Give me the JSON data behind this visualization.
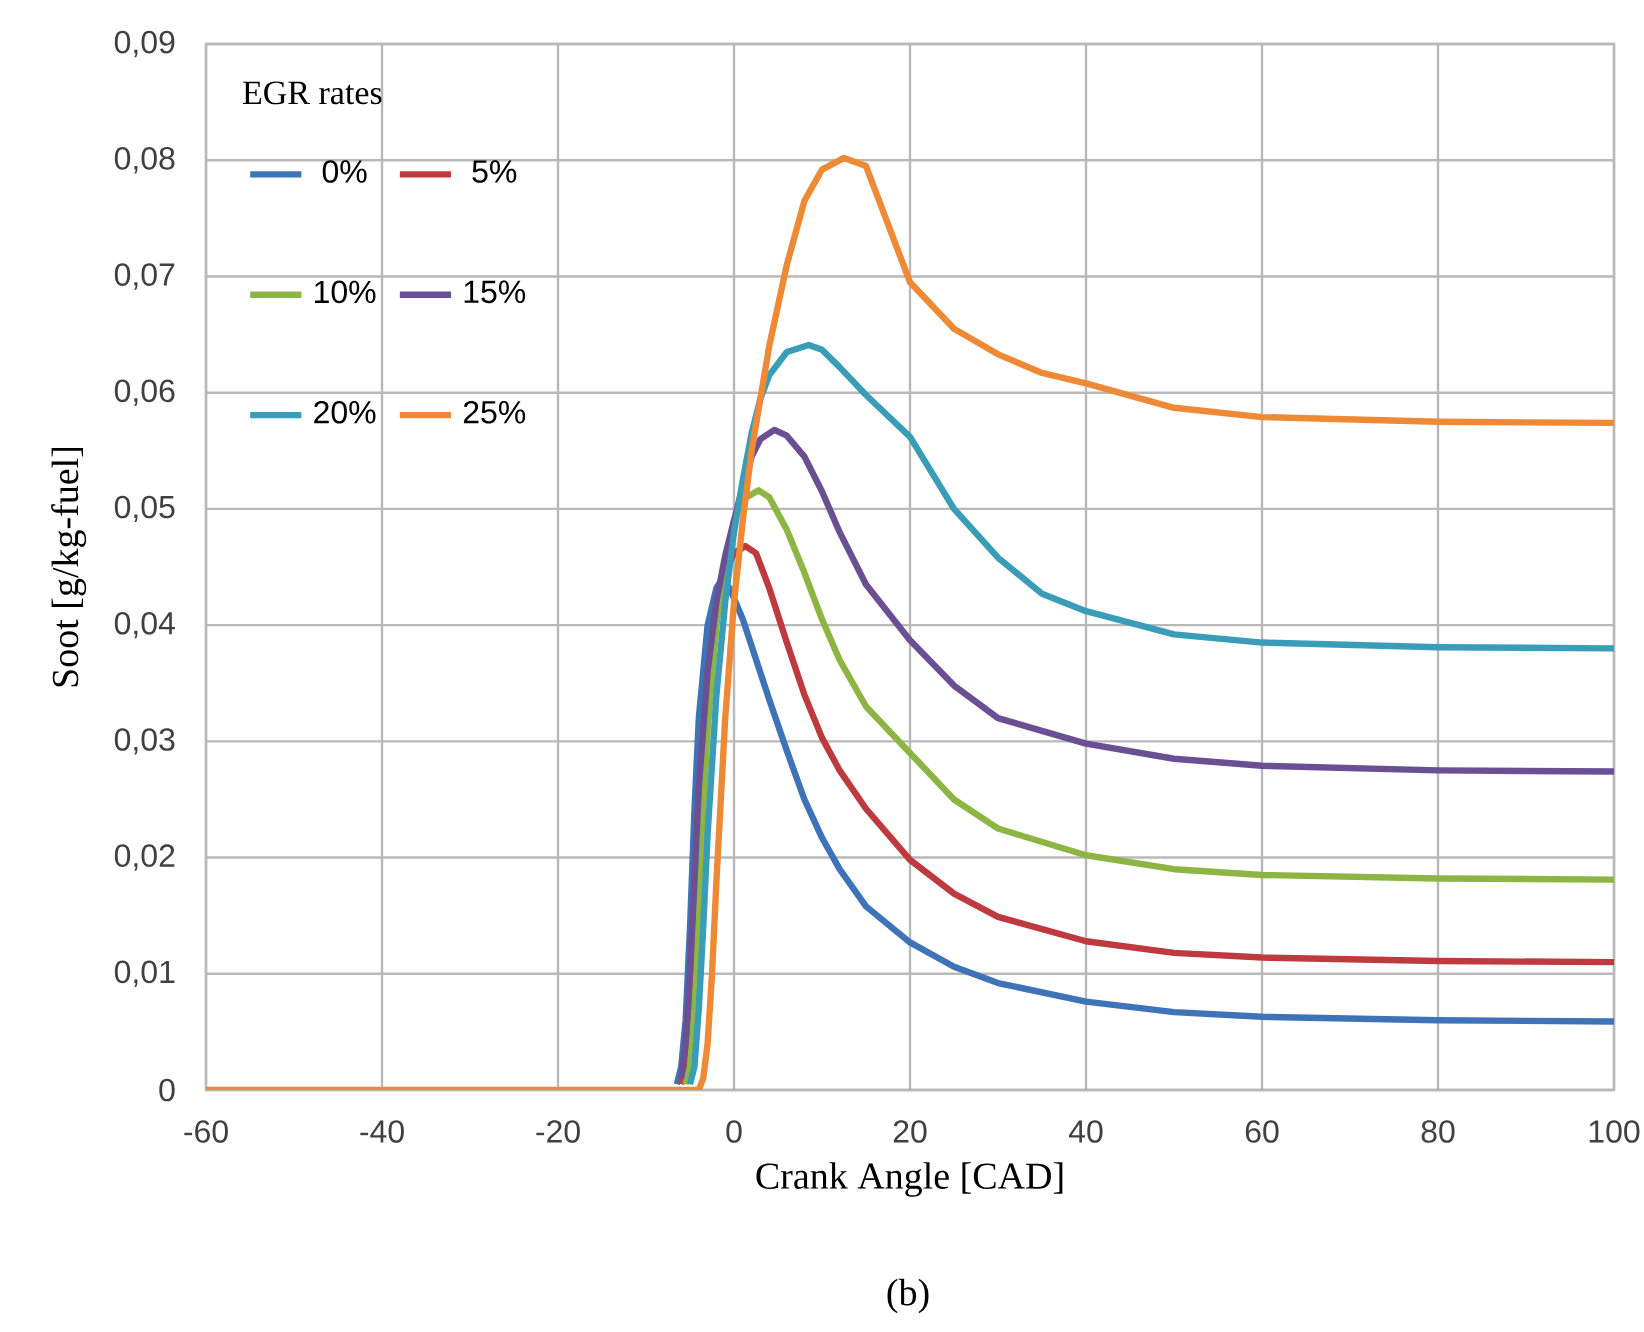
{
  "chart_data": {
    "type": "line",
    "xlabel": "Crank Angle [CAD]",
    "ylabel": "Soot [g/kg-fuel]",
    "legend_title": "EGR rates",
    "annotations": [
      "(b)"
    ],
    "xlim": [
      -60,
      100
    ],
    "xticks": [
      -60,
      -40,
      -20,
      0,
      20,
      40,
      60,
      80,
      100
    ],
    "ylim": [
      0,
      0.09
    ],
    "yticks": [
      0,
      {
        "value": 0.01,
        "label": "0,01"
      },
      {
        "value": 0.02,
        "label": "0,02"
      },
      {
        "value": 0.03,
        "label": "0,03"
      },
      {
        "value": 0.04,
        "label": "0,04"
      },
      {
        "value": 0.05,
        "label": "0,05"
      },
      {
        "value": 0.06,
        "label": "0,06"
      },
      {
        "value": 0.07,
        "label": "0,07"
      },
      {
        "value": 0.08,
        "label": "0,08"
      },
      {
        "value": 0.09,
        "label": "0,09"
      }
    ],
    "grid": true,
    "legend": "top left",
    "marker": "none",
    "line_style": "solid",
    "series": [
      {
        "name": "0%",
        "color": "#3f73b8",
        "x": [
          -6.5,
          -6,
          -5.5,
          -5,
          -4.5,
          -4,
          -3,
          -2,
          -1.4,
          -0.5,
          1,
          2,
          4,
          6,
          8,
          10,
          12,
          15,
          20,
          25,
          30,
          40,
          50,
          60,
          80,
          100
        ],
        "values": [
          0.0005,
          0.002,
          0.006,
          0.014,
          0.024,
          0.032,
          0.04,
          0.0432,
          0.0439,
          0.0432,
          0.0405,
          0.0382,
          0.0336,
          0.0292,
          0.025,
          0.0217,
          0.019,
          0.0158,
          0.0127,
          0.0106,
          0.0092,
          0.0076,
          0.0067,
          0.0063,
          0.006,
          0.0059
        ]
      },
      {
        "name": "5%",
        "color": "#be3a3e",
        "x": [
          -6,
          -5.5,
          -5,
          -4.5,
          -4,
          -3,
          -2,
          -1,
          0,
          1.3,
          2.5,
          4,
          6,
          8,
          10,
          12,
          15,
          20,
          25,
          30,
          40,
          50,
          60,
          80,
          100
        ],
        "values": [
          0.0005,
          0.002,
          0.006,
          0.014,
          0.023,
          0.035,
          0.041,
          0.0445,
          0.0462,
          0.0468,
          0.0462,
          0.0432,
          0.0385,
          0.034,
          0.0303,
          0.0275,
          0.0242,
          0.0198,
          0.0169,
          0.0149,
          0.0128,
          0.0118,
          0.0114,
          0.0111,
          0.011
        ]
      },
      {
        "name": "10%",
        "color": "#8db543",
        "x": [
          -5.5,
          -5,
          -4.5,
          -4,
          -3.5,
          -3,
          -2,
          -1,
          0,
          1,
          2.8,
          4,
          6,
          8,
          10,
          12,
          15,
          20,
          25,
          30,
          40,
          50,
          60,
          80,
          100
        ],
        "values": [
          0.0005,
          0.002,
          0.007,
          0.015,
          0.024,
          0.031,
          0.04,
          0.0455,
          0.049,
          0.0508,
          0.0516,
          0.051,
          0.0482,
          0.0445,
          0.0405,
          0.037,
          0.033,
          0.029,
          0.025,
          0.0225,
          0.0202,
          0.019,
          0.0185,
          0.0182,
          0.0181
        ]
      },
      {
        "name": "15%",
        "color": "#6a4f93",
        "x": [
          -6,
          -5.5,
          -5,
          -4.5,
          -4,
          -3,
          -2,
          -1,
          0,
          1,
          2,
          3,
          4.6,
          6,
          8,
          10,
          12,
          15,
          20,
          25,
          30,
          40,
          50,
          60,
          80,
          100
        ],
        "values": [
          0.001,
          0.004,
          0.01,
          0.018,
          0.026,
          0.036,
          0.042,
          0.046,
          0.049,
          0.052,
          0.0545,
          0.056,
          0.0568,
          0.0563,
          0.0545,
          0.0515,
          0.048,
          0.0435,
          0.0387,
          0.0348,
          0.032,
          0.0298,
          0.0285,
          0.0279,
          0.0275,
          0.0274
        ]
      },
      {
        "name": "20%",
        "color": "#3a9db8",
        "x": [
          -5,
          -4.5,
          -4,
          -3.5,
          -3,
          -2,
          -1,
          0,
          1,
          2,
          3,
          4,
          6,
          8.5,
          10,
          12,
          15,
          20,
          25,
          30,
          35,
          40,
          50,
          60,
          80,
          100
        ],
        "values": [
          0.0005,
          0.002,
          0.007,
          0.014,
          0.022,
          0.034,
          0.042,
          0.048,
          0.0525,
          0.0565,
          0.0595,
          0.0615,
          0.0635,
          0.0641,
          0.0637,
          0.0622,
          0.0598,
          0.0562,
          0.05,
          0.0458,
          0.0427,
          0.0412,
          0.0392,
          0.0385,
          0.0381,
          0.038
        ]
      },
      {
        "name": "25%",
        "color": "#ee8a35",
        "x": [
          -60,
          -4,
          -3.5,
          -3,
          -2.5,
          -2,
          -1,
          0,
          1,
          2,
          4,
          6,
          8,
          10,
          12.5,
          15,
          17,
          20,
          25,
          30,
          35,
          40,
          50,
          60,
          80,
          100
        ],
        "values": [
          0,
          0,
          0.001,
          0.004,
          0.01,
          0.018,
          0.032,
          0.042,
          0.049,
          0.055,
          0.064,
          0.071,
          0.0765,
          0.0792,
          0.0802,
          0.0795,
          0.0755,
          0.0695,
          0.0655,
          0.0633,
          0.0617,
          0.0608,
          0.0587,
          0.0579,
          0.0575,
          0.0574
        ]
      }
    ]
  }
}
